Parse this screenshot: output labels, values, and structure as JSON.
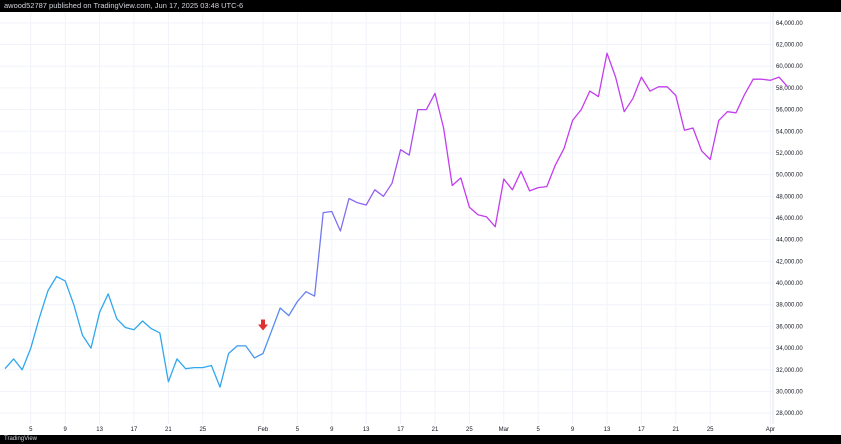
{
  "header": {
    "publish_text": "awood52787 published on TradingView.com, Jun 17, 2025 03:48 UTC-6"
  },
  "footer": {
    "brand_text": "TradingView"
  },
  "colors": {
    "line_start": "#2fa8ef",
    "line_end": "#c53cf0",
    "grid": "#f0f3fa",
    "axis_text": "#131722",
    "signal_arrow": "#e0312f"
  },
  "chart_data": {
    "type": "line",
    "title": "",
    "xlabel": "",
    "ylabel": "",
    "ylim": [
      27000,
      65000
    ],
    "y_ticks": [
      "28,000.00",
      "30,000.00",
      "32,000.00",
      "34,000.00",
      "36,000.00",
      "38,000.00",
      "40,000.00",
      "42,000.00",
      "44,000.00",
      "46,000.00",
      "48,000.00",
      "50,000.00",
      "52,000.00",
      "54,000.00",
      "56,000.00",
      "58,000.00",
      "60,000.00",
      "62,000.00",
      "64,000.00"
    ],
    "x_ticks": [
      {
        "label": "5",
        "index": 3
      },
      {
        "label": "9",
        "index": 7
      },
      {
        "label": "13",
        "index": 11
      },
      {
        "label": "17",
        "index": 15
      },
      {
        "label": "21",
        "index": 19
      },
      {
        "label": "25",
        "index": 23
      },
      {
        "label": "Feb",
        "index": 30
      },
      {
        "label": "5",
        "index": 34
      },
      {
        "label": "9",
        "index": 38
      },
      {
        "label": "13",
        "index": 42
      },
      {
        "label": "17",
        "index": 46
      },
      {
        "label": "21",
        "index": 50
      },
      {
        "label": "25",
        "index": 54
      },
      {
        "label": "Mar",
        "index": 58
      },
      {
        "label": "5",
        "index": 62
      },
      {
        "label": "9",
        "index": 66
      },
      {
        "label": "13",
        "index": 70
      },
      {
        "label": "17",
        "index": 74
      },
      {
        "label": "21",
        "index": 78
      },
      {
        "label": "25",
        "index": 82
      },
      {
        "label": "Apr",
        "index": 89
      }
    ],
    "values": [
      32100,
      33000,
      32000,
      34000,
      36800,
      39300,
      40600,
      40200,
      38000,
      35200,
      34000,
      37300,
      39000,
      36700,
      35900,
      35700,
      36500,
      35800,
      35400,
      30900,
      33000,
      32100,
      32200,
      32200,
      32400,
      30400,
      33500,
      34200,
      34200,
      33100,
      33500,
      35600,
      37700,
      37000,
      38300,
      39200,
      38800,
      46500,
      46600,
      44800,
      47800,
      47400,
      47200,
      48600,
      48000,
      49200,
      52300,
      51800,
      56000,
      56000,
      57500,
      54300,
      49000,
      49700,
      47000,
      46300,
      46100,
      45200,
      49600,
      48600,
      50300,
      48500,
      48800,
      48900,
      50900,
      52400,
      55000,
      56000,
      57700,
      57200,
      61200,
      59000,
      55800,
      57000,
      59000,
      57700,
      58100,
      58100,
      57300,
      54100,
      54300,
      52200,
      51400,
      55000,
      55800,
      55700,
      57400,
      58800,
      58800,
      58700,
      59000,
      58100
    ],
    "signals": [
      {
        "type": "sell-arrow",
        "index": 30
      }
    ],
    "grid": true,
    "legend": "none"
  }
}
